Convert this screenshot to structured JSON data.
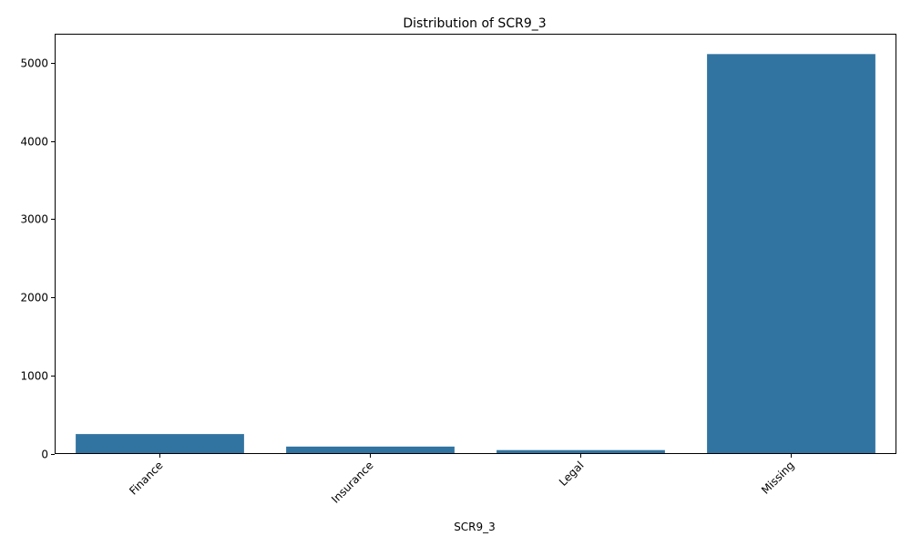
{
  "chart_data": {
    "type": "bar",
    "title": "Distribution of SCR9_3",
    "xlabel": "SCR9_3",
    "ylabel": "",
    "categories": [
      "Finance",
      "Insurance",
      "Legal",
      "Missing"
    ],
    "values": [
      255,
      95,
      50,
      5110
    ],
    "ylim": [
      0,
      5370
    ],
    "yticks": [
      0,
      1000,
      2000,
      3000,
      4000,
      5000
    ],
    "grid": false,
    "bar_color": "#3274a1"
  }
}
